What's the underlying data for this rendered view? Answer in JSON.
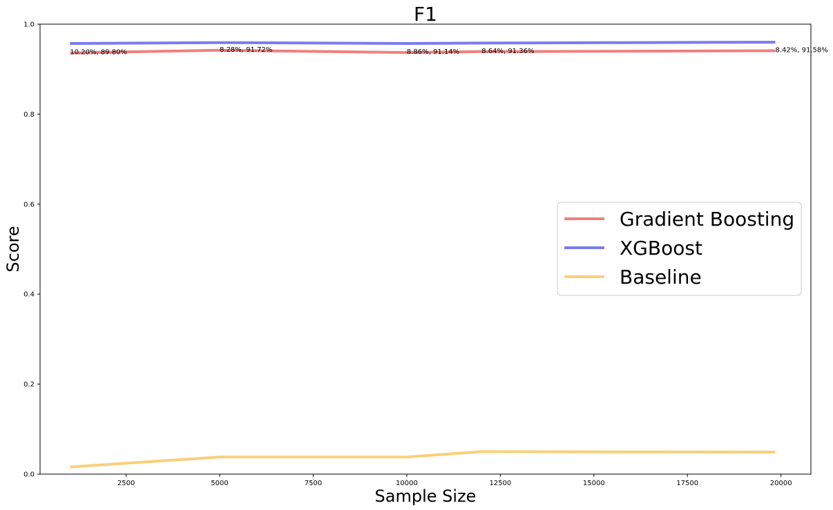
{
  "chart_data": {
    "type": "line",
    "title": "F1",
    "xlabel": "Sample Size",
    "ylabel": "Score",
    "xlim": [
      200,
      20800
    ],
    "ylim": [
      0.0,
      1.0
    ],
    "xticks": [
      2500,
      5000,
      7500,
      10000,
      12500,
      15000,
      17500,
      20000
    ],
    "yticks": [
      0.0,
      0.2,
      0.4,
      0.6,
      0.8,
      1.0
    ],
    "xtick_labels": [
      "2500",
      "5000",
      "7500",
      "10000",
      "12500",
      "15000",
      "17500",
      "20000"
    ],
    "ytick_labels": [
      "0.0",
      "0.2",
      "0.4",
      "0.6",
      "0.8",
      "1.0"
    ],
    "grid": false,
    "legend_position": "center-right",
    "series": [
      {
        "name": "Gradient Boosting",
        "color": "#f08080",
        "x": [
          1000,
          5000,
          10000,
          12000,
          19850
        ],
        "y": [
          0.936,
          0.942,
          0.937,
          0.939,
          0.941
        ]
      },
      {
        "name": "XGBoost",
        "color": "#7b7bf0",
        "x": [
          1000,
          5000,
          10000,
          12000,
          19850
        ],
        "y": [
          0.957,
          0.959,
          0.957,
          0.958,
          0.96
        ]
      },
      {
        "name": "Baseline",
        "color": "#fbcf7a",
        "x": [
          1000,
          5000,
          10000,
          12000,
          19850
        ],
        "y": [
          0.016,
          0.038,
          0.038,
          0.05,
          0.049
        ]
      }
    ],
    "annotations": [
      {
        "x": 1000,
        "y": 0.936,
        "text": "10.20%, 89.80%"
      },
      {
        "x": 5000,
        "y": 0.942,
        "text": "8.28%, 91.72%"
      },
      {
        "x": 10000,
        "y": 0.937,
        "text": "8.86%, 91.14%"
      },
      {
        "x": 12000,
        "y": 0.939,
        "text": "8.64%, 91.36%"
      },
      {
        "x": 19850,
        "y": 0.941,
        "text": "8.42%, 91.58%"
      }
    ]
  }
}
